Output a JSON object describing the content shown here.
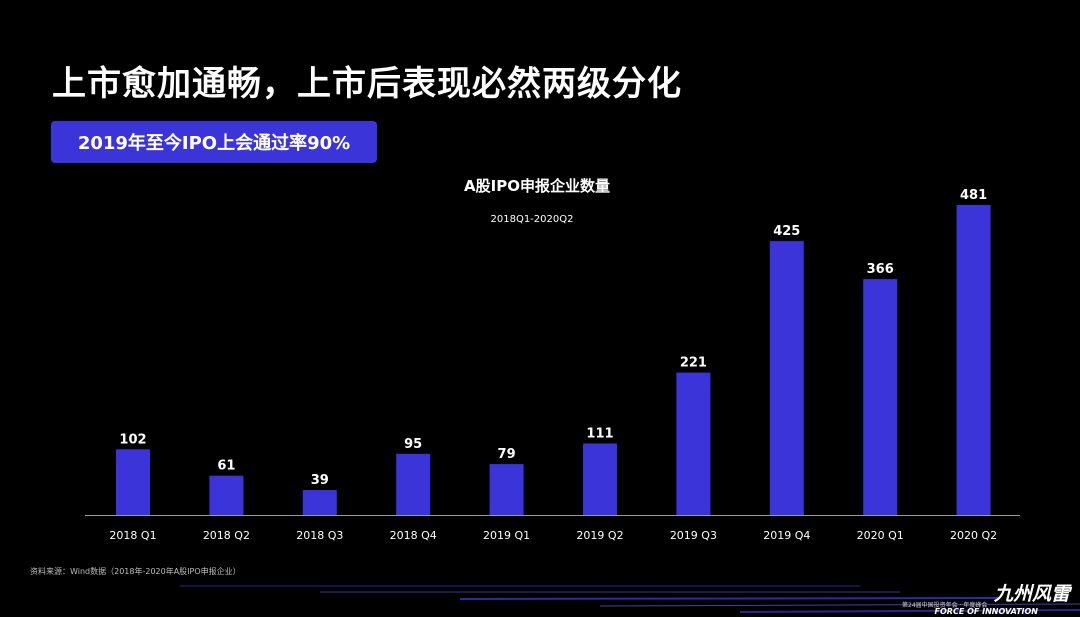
{
  "slide": {
    "title": "上市愈加通畅，上市后表现必然两级分化",
    "badge": "2019年至今IPO上会通过率90%",
    "source": "资料来源：Wind数据（2018年-2020年A股IPO申报企业）",
    "brand_logo": "九州风雷",
    "brand_sub": "第24届中国投资年会 · 年度峰会",
    "brand_en": "FORCE OF INNOVATION"
  },
  "colors": {
    "background": "#000000",
    "bar": "#3b34d8",
    "badge": "#3b34d8",
    "text": "#ffffff",
    "axis": "#9a9a9a"
  },
  "chart_data": {
    "type": "bar",
    "title": "A股IPO申报企业数量",
    "subtitle": "2018Q1-2020Q2",
    "categories": [
      "2018 Q1",
      "2018 Q2",
      "2018 Q3",
      "2018 Q4",
      "2019 Q1",
      "2019 Q2",
      "2019 Q3",
      "2019 Q4",
      "2020 Q1",
      "2020 Q2"
    ],
    "values": [
      102,
      61,
      39,
      95,
      79,
      111,
      221,
      425,
      366,
      481
    ],
    "ylim": [
      0,
      481
    ],
    "grid": false,
    "data_labels": true
  }
}
